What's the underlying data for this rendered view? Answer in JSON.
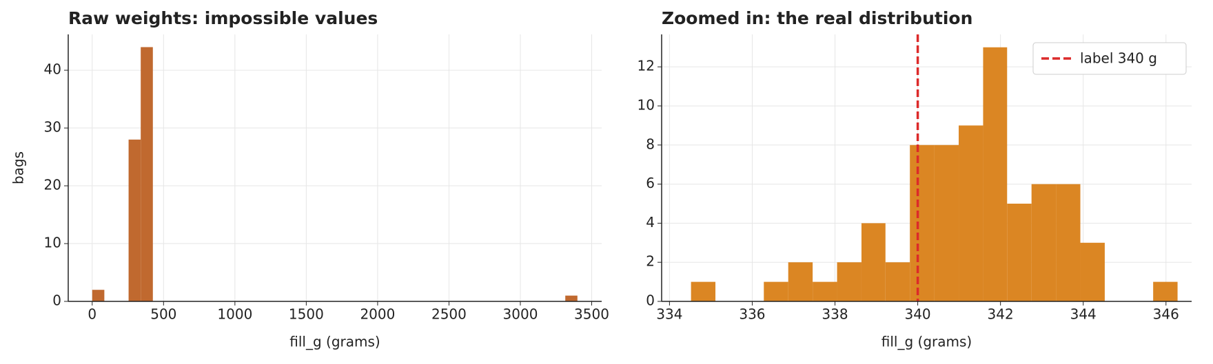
{
  "chart_data": [
    {
      "type": "histogram",
      "title": "Raw weights: impossible values",
      "x_label": "fill_g (grams)",
      "y_label": "bags",
      "bins": [
        0,
        85,
        170,
        255,
        340,
        425,
        510,
        595,
        680,
        765,
        850,
        935,
        1020,
        1105,
        1190,
        1275,
        1360,
        1445,
        1530,
        1615,
        1700,
        1785,
        1870,
        1955,
        2040,
        2125,
        2210,
        2295,
        2380,
        2465,
        2550,
        2635,
        2720,
        2805,
        2890,
        2975,
        3060,
        3145,
        3230,
        3315,
        3400
      ],
      "values": [
        2,
        0,
        0,
        28,
        44,
        0,
        0,
        0,
        0,
        0,
        0,
        0,
        0,
        0,
        0,
        0,
        0,
        0,
        0,
        0,
        0,
        0,
        0,
        0,
        0,
        0,
        0,
        0,
        0,
        0,
        0,
        0,
        0,
        0,
        0,
        0,
        0,
        0,
        0,
        1
      ],
      "color": "#c0692f",
      "xlim": [
        -168,
        3570
      ],
      "ylim": [
        0,
        46.2
      ],
      "xticks": [
        0,
        500,
        1000,
        1500,
        2000,
        2500,
        3000,
        3500
      ],
      "yticks": [
        0,
        10,
        20,
        30,
        40
      ],
      "grid": true
    },
    {
      "type": "histogram",
      "title": "Zoomed in: the real distribution",
      "x_label": "fill_g (grams)",
      "bins": [
        334.52,
        335.11,
        335.7,
        336.28,
        336.87,
        337.46,
        338.05,
        338.64,
        339.22,
        339.81,
        340.4,
        340.99,
        341.58,
        342.16,
        342.75,
        343.34,
        343.93,
        344.52,
        345.1,
        345.69,
        346.28
      ],
      "values": [
        1,
        0,
        0,
        1,
        2,
        1,
        2,
        4,
        2,
        8,
        8,
        9,
        13,
        5,
        6,
        6,
        3,
        0,
        0,
        1
      ],
      "color": "#db8623",
      "xlim": [
        333.81,
        346.62
      ],
      "ylim": [
        0,
        13.66
      ],
      "xticks": [
        334,
        336,
        338,
        340,
        342,
        344,
        346
      ],
      "yticks": [
        0,
        2,
        4,
        6,
        8,
        10,
        12
      ],
      "grid": true,
      "reference_line": {
        "value": 340,
        "label": "label 340 g",
        "color": "#dc2a2a"
      },
      "legend": "upper right"
    }
  ]
}
